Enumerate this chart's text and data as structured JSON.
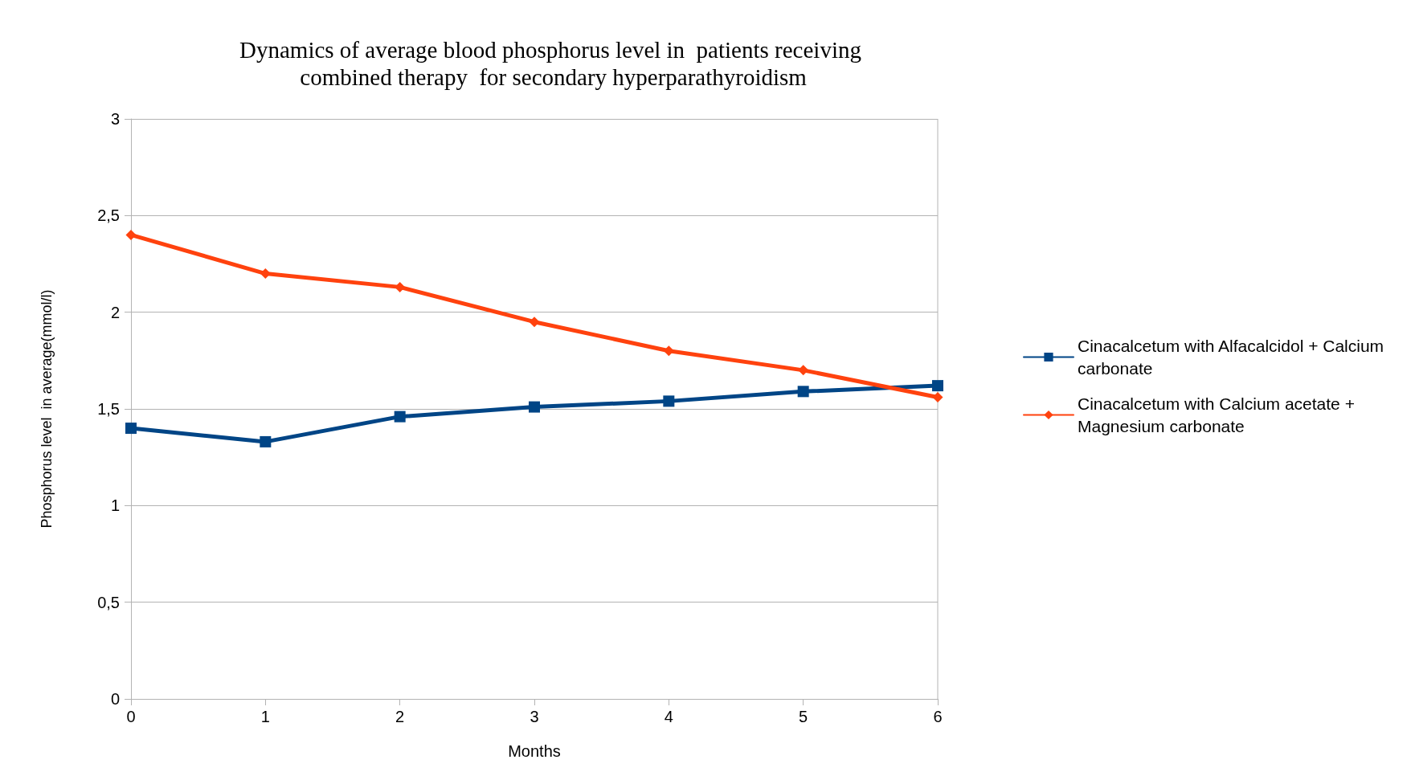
{
  "chart_data": {
    "type": "line",
    "title": "Dynamics of average blood phosphorus level in  patients receiving\n combined therapy  for secondary hyperparathyroidism",
    "xlabel": "Months",
    "ylabel": "Phosphorus level  in average(mmol/l)",
    "x": [
      0,
      1,
      2,
      3,
      4,
      5,
      6
    ],
    "series": [
      {
        "name": "Cinacalcetum with Alfacalcidol + Calcium carbonate",
        "color": "#004586",
        "marker": "square",
        "values": [
          1.4,
          1.33,
          1.46,
          1.51,
          1.54,
          1.59,
          1.62
        ]
      },
      {
        "name": "Cinacalcetum with Calcium acetate + Magnesium carbonate",
        "color": "#ff420e",
        "marker": "diamond",
        "values": [
          2.4,
          2.2,
          2.13,
          1.95,
          1.8,
          1.7,
          1.56
        ]
      }
    ],
    "xlim": [
      0,
      6
    ],
    "xticks": [
      0,
      1,
      2,
      3,
      4,
      5,
      6
    ],
    "ylim": [
      0,
      3
    ],
    "yticks": [
      0,
      {
        "value": 0.5,
        "label": "0,5"
      },
      1,
      {
        "value": 1.5,
        "label": "1,5"
      },
      2,
      {
        "value": 2.5,
        "label": "2,5"
      },
      3
    ],
    "grid": "y",
    "legend": "right"
  }
}
